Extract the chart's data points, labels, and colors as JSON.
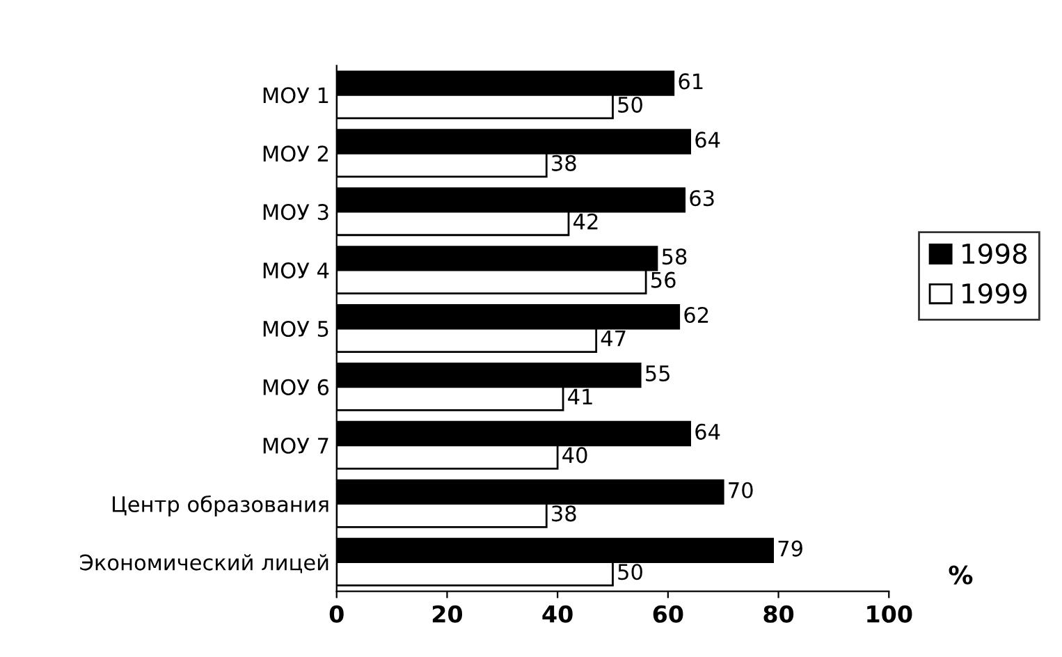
{
  "chart_data": {
    "type": "bar",
    "orientation": "horizontal",
    "xlabel": "%",
    "categories": [
      "МОУ 1",
      "МОУ 2",
      "МОУ 3",
      "МОУ 4",
      "МОУ 5",
      "МОУ 6",
      "МОУ 7",
      "Центр образования",
      "Экономический лицей"
    ],
    "series": [
      {
        "name": "1998",
        "color": "#000000",
        "values": [
          61,
          64,
          63,
          58,
          62,
          55,
          64,
          70,
          79
        ]
      },
      {
        "name": "1999",
        "color": "#ffffff",
        "values": [
          50,
          38,
          42,
          56,
          47,
          41,
          40,
          38,
          50
        ]
      }
    ],
    "xlim": [
      0,
      100
    ],
    "xticks": [
      0,
      20,
      40,
      60,
      80,
      100
    ],
    "data_labels": true,
    "grid": false,
    "legend": "right"
  }
}
